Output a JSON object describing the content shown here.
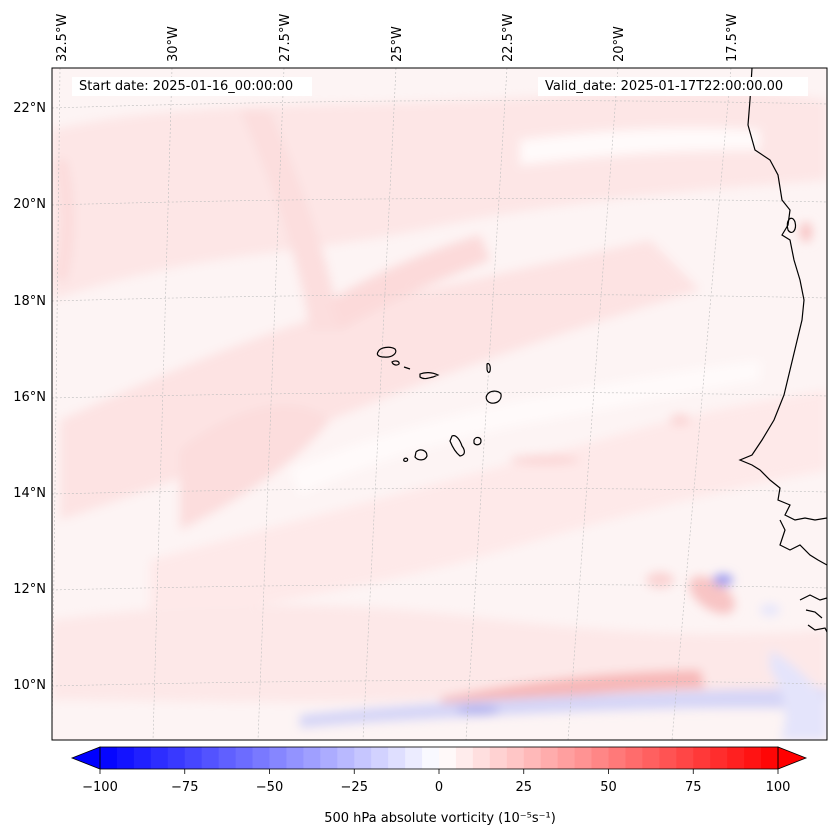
{
  "header": {
    "start_date": "Start date: 2025-01-16_00:00:00",
    "valid_date": "Valid_date: 2025-01-17T22:00:00.00"
  },
  "map": {
    "longitude_labels": [
      "32.5°W",
      "30°W",
      "27.5°W",
      "25°W",
      "22.5°W",
      "20°W",
      "17.5°W"
    ],
    "latitude_labels": [
      "22°N",
      "20°N",
      "18°N",
      "16°N",
      "14°N",
      "12°N",
      "10°N"
    ],
    "field": "500 hPa absolute vorticity",
    "region": "Cabo Verde Islands and West African coast"
  },
  "colorbar": {
    "ticks": [
      "−100",
      "−75",
      "−50",
      "−25",
      "0",
      "25",
      "50",
      "75",
      "100"
    ],
    "tick_values": [
      -100,
      -75,
      -50,
      -25,
      0,
      25,
      50,
      75,
      100
    ],
    "label": "500 hPa absolute vorticity (10⁻⁵s⁻¹)",
    "range": [
      -100,
      100
    ],
    "colormap": "bwr",
    "extend": "both",
    "low_color": "#0000ff",
    "mid_color": "#ffffff",
    "high_color": "#ff0000"
  }
}
